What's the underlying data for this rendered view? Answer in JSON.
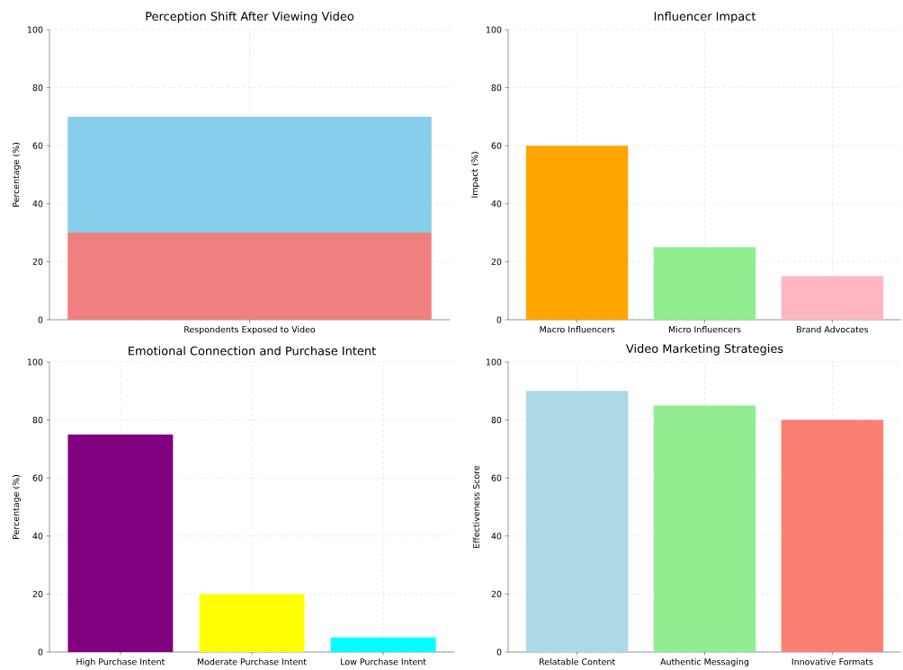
{
  "chart_data": [
    {
      "type": "bar",
      "stacked": true,
      "title": "Perception Shift After Viewing Video",
      "ylabel": "Percentage (%)",
      "categories": [
        "Respondents Exposed to Video"
      ],
      "series": [
        {
          "color": "#f08080",
          "values": [
            30
          ]
        },
        {
          "color": "#87ceeb",
          "values": [
            40
          ]
        }
      ],
      "ylim": [
        0,
        100
      ],
      "yticks": [
        0,
        20,
        40,
        60,
        80,
        100
      ],
      "grid": true
    },
    {
      "type": "bar",
      "title": "Influencer Impact",
      "ylabel": "Impact (%)",
      "categories": [
        "Macro Influencers",
        "Micro Influencers",
        "Brand Advocates"
      ],
      "values": [
        60,
        25,
        15
      ],
      "colors": [
        "#ffa500",
        "#90ee90",
        "#ffb6c1"
      ],
      "ylim": [
        0,
        100
      ],
      "yticks": [
        0,
        20,
        40,
        60,
        80,
        100
      ],
      "grid": true
    },
    {
      "type": "bar",
      "title": "Emotional Connection and Purchase Intent",
      "ylabel": "Percentage (%)",
      "categories": [
        "High Purchase Intent",
        "Moderate Purchase Intent",
        "Low Purchase Intent"
      ],
      "values": [
        75,
        20,
        5
      ],
      "colors": [
        "#800080",
        "#ffff00",
        "#00ffff"
      ],
      "ylim": [
        0,
        100
      ],
      "yticks": [
        0,
        20,
        40,
        60,
        80,
        100
      ],
      "grid": true
    },
    {
      "type": "bar",
      "title": "Video Marketing Strategies",
      "ylabel": "Effectiveness Score",
      "categories": [
        "Relatable Content",
        "Authentic Messaging",
        "Innovative Formats"
      ],
      "values": [
        90,
        85,
        80
      ],
      "colors": [
        "#add8e6",
        "#90ee90",
        "#fa8072"
      ],
      "ylim": [
        0,
        100
      ],
      "yticks": [
        0,
        20,
        40,
        60,
        80,
        100
      ],
      "grid": true
    }
  ]
}
